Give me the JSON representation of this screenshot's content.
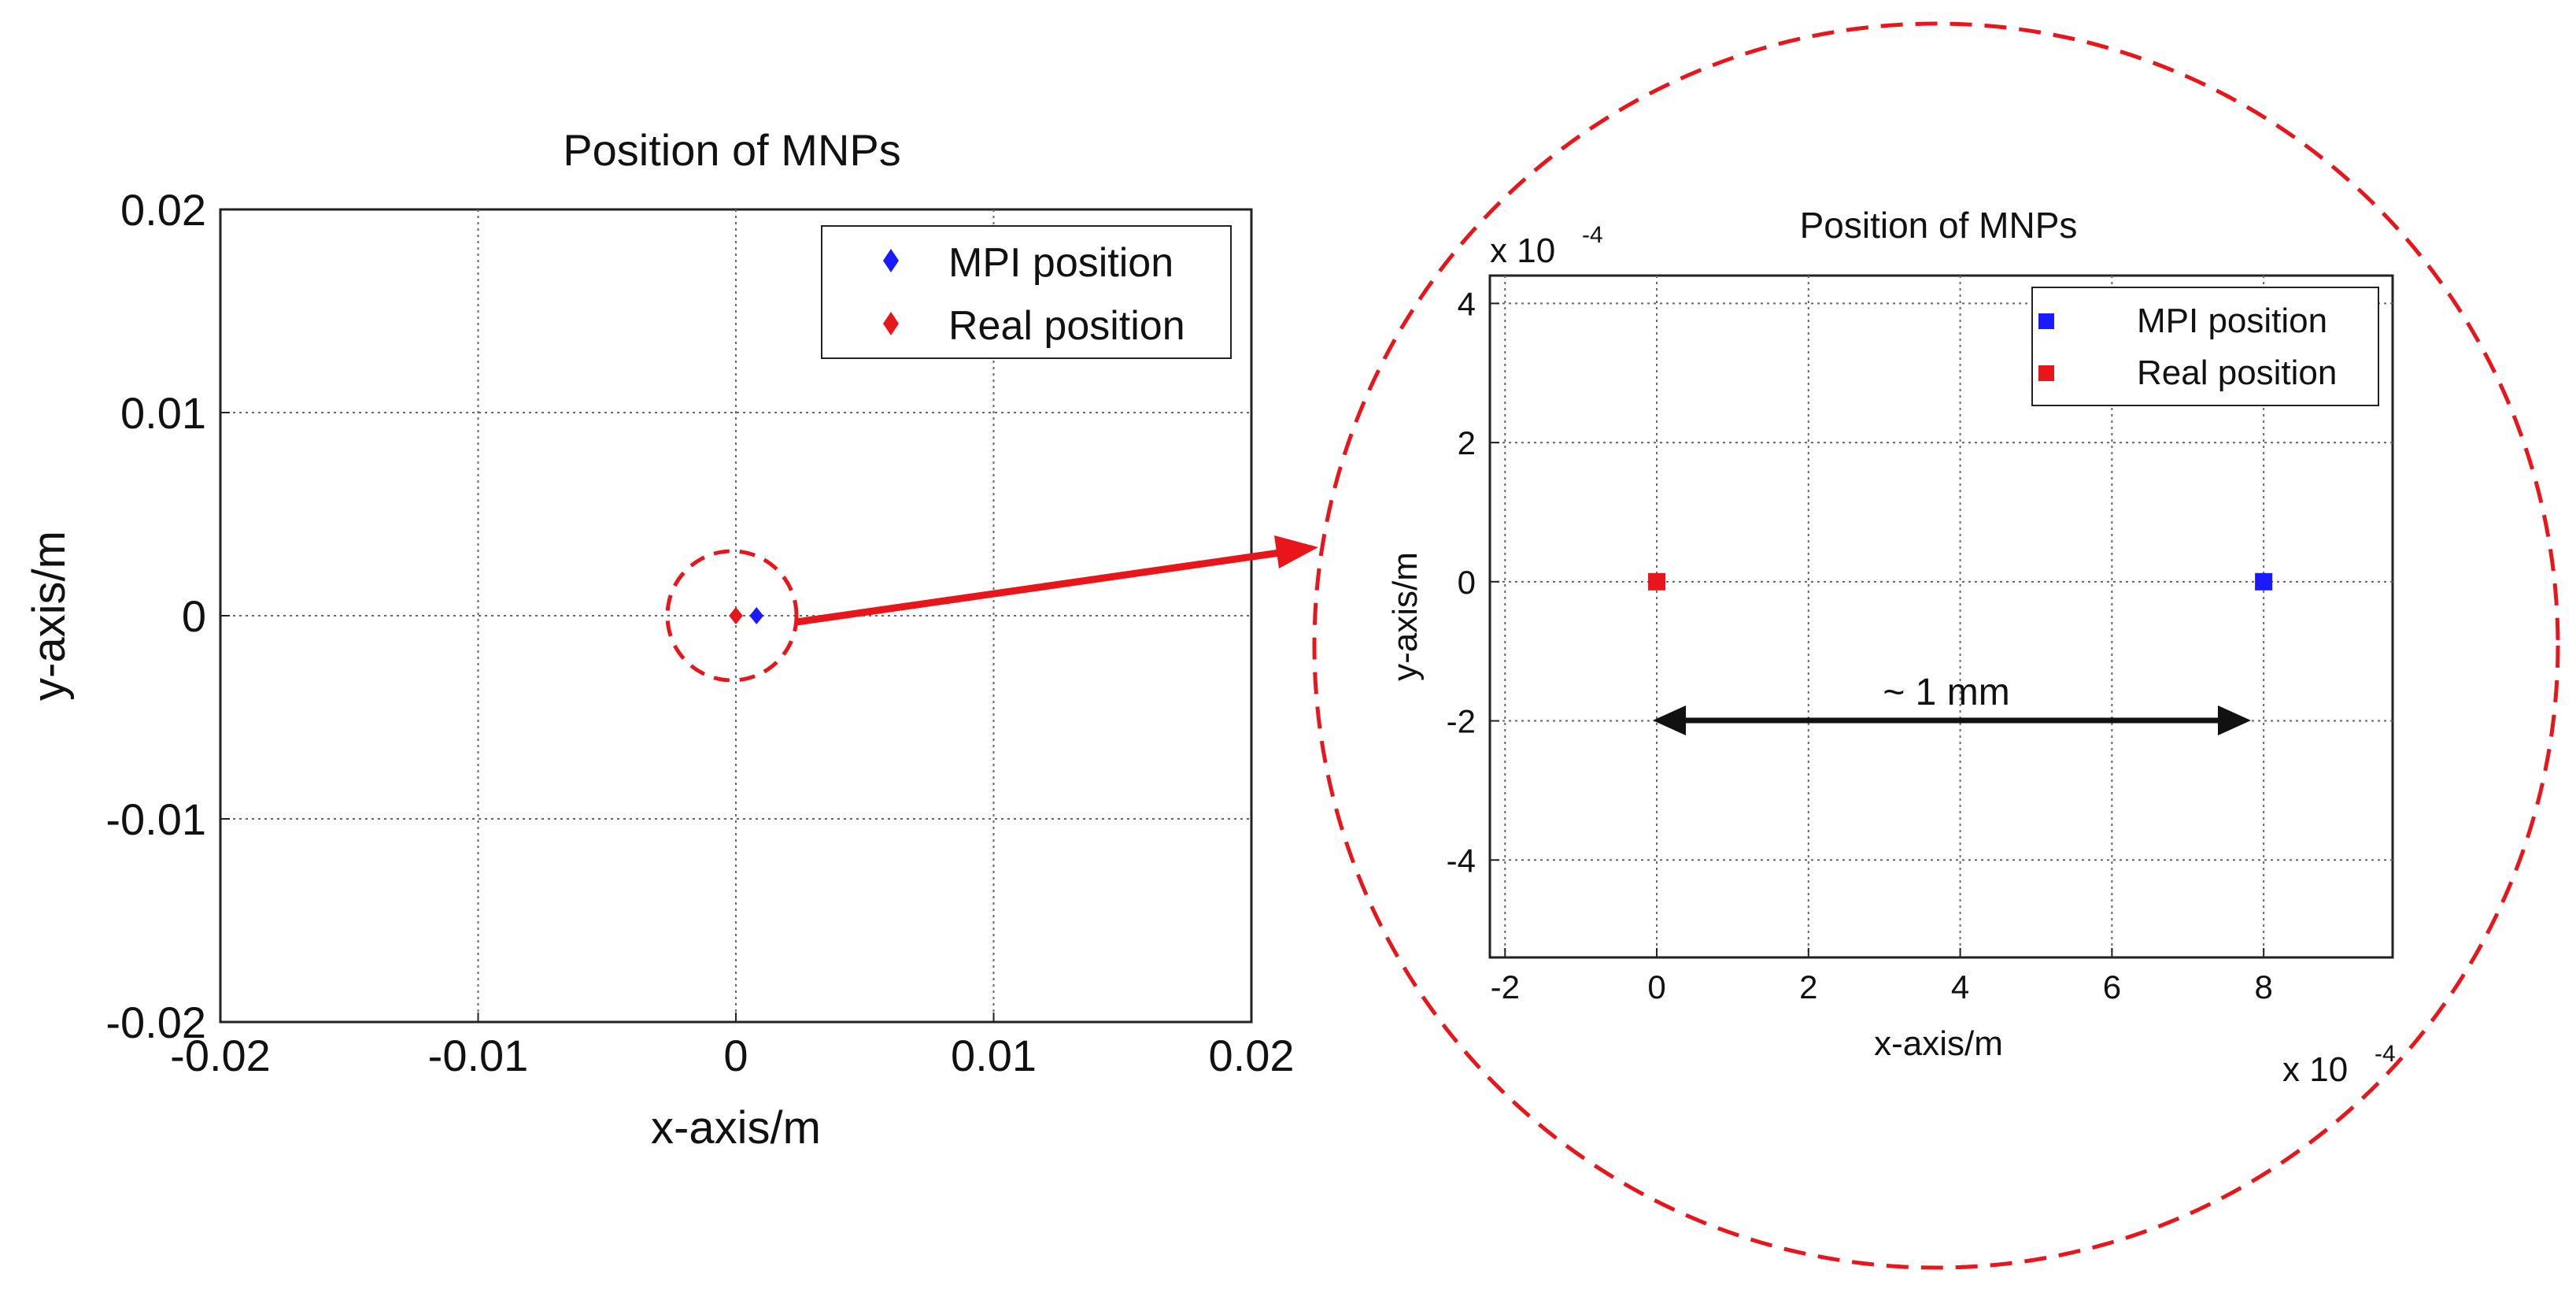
{
  "chart_data": [
    {
      "type": "scatter",
      "title": "Position of MNPs",
      "xlabel": "x-axis/m",
      "ylabel": "y-axis/m",
      "xlim": [
        -0.02,
        0.02
      ],
      "ylim": [
        -0.02,
        0.02
      ],
      "xticks": [
        -0.02,
        -0.01,
        0,
        0.01,
        0.02
      ],
      "xtick_labels": [
        "-0.02",
        "-0.01",
        "0",
        "0.01",
        "0.02"
      ],
      "yticks": [
        -0.02,
        -0.01,
        0,
        0.01,
        0.02
      ],
      "ytick_labels": [
        "-0.02",
        "-0.01",
        "0",
        "0.01",
        "0.02"
      ],
      "grid": true,
      "legend_position": "top-right",
      "series": [
        {
          "name": "MPI position",
          "color": "#1a1aff",
          "marker": "diamond",
          "points": [
            [
              0.0008,
              0
            ]
          ]
        },
        {
          "name": "Real position",
          "color": "#e8151b",
          "marker": "diamond",
          "points": [
            [
              0,
              0
            ]
          ]
        }
      ]
    },
    {
      "type": "scatter",
      "title": "Position of MNPs",
      "xlabel": "x-axis/m",
      "ylabel": "y-axis/m",
      "xlim": [
        -2.2,
        9.7
      ],
      "ylim": [
        -5.4,
        4.4
      ],
      "scale_label": "x 10",
      "scale_exponent": "-4",
      "xticks": [
        -2,
        0,
        2,
        4,
        6,
        8
      ],
      "xtick_labels": [
        "-2",
        "0",
        "2",
        "4",
        "6",
        "8"
      ],
      "yticks": [
        -4,
        -2,
        0,
        2,
        4
      ],
      "ytick_labels": [
        "-4",
        "-2",
        "0",
        "2",
        "4"
      ],
      "grid": true,
      "legend_position": "top-right",
      "series": [
        {
          "name": "MPI position",
          "color": "#1a1aff",
          "marker": "square",
          "points": [
            [
              8,
              0
            ]
          ]
        },
        {
          "name": "Real position",
          "color": "#e8151b",
          "marker": "square",
          "points": [
            [
              0,
              0
            ]
          ]
        }
      ],
      "annotation": {
        "text": "~ 1 mm",
        "from": [
          0,
          -2
        ],
        "to": [
          8,
          -2
        ]
      }
    }
  ],
  "colors": {
    "highlight": "#e8151b",
    "arrow": "#111111",
    "grid": "#666666"
  }
}
